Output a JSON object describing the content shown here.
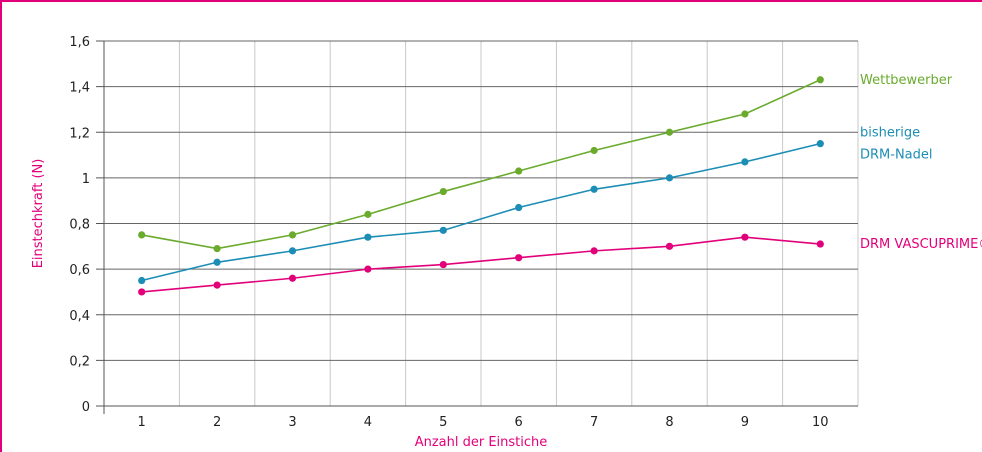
{
  "chart_data": {
    "type": "line",
    "title": "",
    "xlabel": "Anzahl der Einstiche",
    "ylabel": "Einstechkraft (N)",
    "categories": [
      "1",
      "2",
      "3",
      "4",
      "5",
      "6",
      "7",
      "8",
      "9",
      "10"
    ],
    "ylim": [
      0,
      1.6
    ],
    "yticks": [
      "0",
      "0,2",
      "0,4",
      "0,6",
      "0,8",
      "1",
      "1,2",
      "1,4",
      "1,6"
    ],
    "grid": true,
    "legend_placement": "right",
    "series": [
      {
        "name": "Wettbewerber",
        "color": "#6aab2e",
        "values": [
          0.75,
          0.69,
          0.75,
          0.84,
          0.94,
          1.03,
          1.12,
          1.2,
          1.28,
          1.43
        ]
      },
      {
        "name": "bisherige DRM-Nadel",
        "name_lines": [
          "bisherige",
          "DRM-Nadel"
        ],
        "color": "#1c8db5",
        "values": [
          0.55,
          0.63,
          0.68,
          0.74,
          0.77,
          0.87,
          0.95,
          1.0,
          1.07,
          1.15
        ]
      },
      {
        "name": "DRM VASCUPRIME®",
        "color": "#e2007a",
        "values": [
          0.5,
          0.53,
          0.56,
          0.6,
          0.62,
          0.65,
          0.68,
          0.7,
          0.74,
          0.71
        ]
      }
    ],
    "colors": {
      "frame": "#e2007a",
      "axis_title": "#e2007a",
      "grid": "#c8c8c8"
    }
  }
}
